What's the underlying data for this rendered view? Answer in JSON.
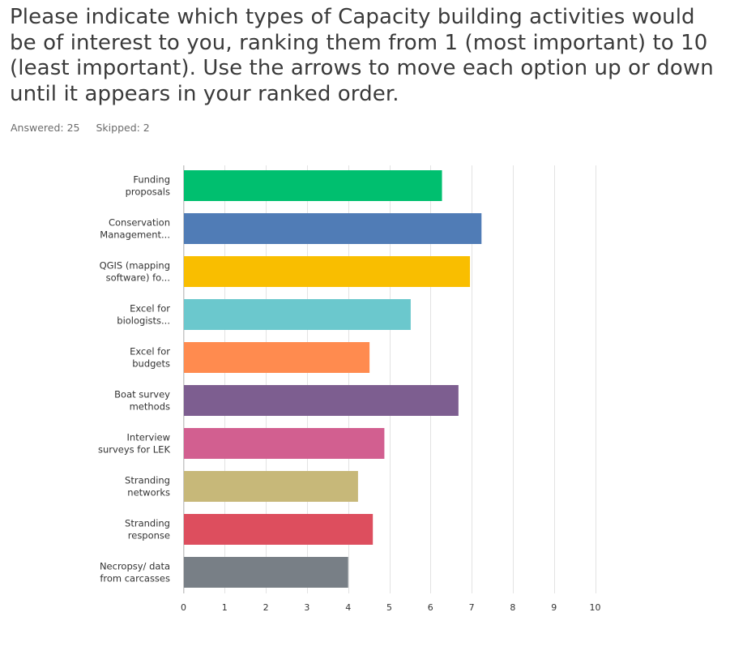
{
  "question": {
    "text": "Please indicate which types of Capacity building activities would be of interest to you, ranking them from 1 (most important) to 10 (least important). Use the arrows to move each option up or down until it appears in your ranked order."
  },
  "stats": {
    "answered_label": "Answered: 25",
    "skipped_label": "Skipped: 2"
  },
  "chart_data": {
    "type": "bar",
    "orientation": "horizontal",
    "title": "",
    "xlabel": "",
    "ylabel": "",
    "xlim": [
      0,
      10
    ],
    "x_ticks": [
      "0",
      "1",
      "2",
      "3",
      "4",
      "5",
      "6",
      "7",
      "8",
      "9",
      "10"
    ],
    "grid": true,
    "categories": [
      [
        "Funding",
        "proposals"
      ],
      [
        "Conservation",
        "Management..."
      ],
      [
        "QGIS (mapping",
        "software) fo..."
      ],
      [
        "Excel for",
        "biologists..."
      ],
      [
        "Excel for",
        "budgets"
      ],
      [
        "Boat survey",
        "methods"
      ],
      [
        "Interview",
        "surveys for LEK"
      ],
      [
        "Stranding",
        "networks"
      ],
      [
        "Stranding",
        "response"
      ],
      [
        "Necropsy/ data",
        "from carcasses"
      ]
    ],
    "values": [
      6.28,
      7.24,
      6.96,
      5.52,
      4.52,
      6.68,
      4.88,
      4.24,
      4.6,
      4.0
    ],
    "colors": [
      "#00bf6f",
      "#507cb6",
      "#f9be00",
      "#6bc8cd",
      "#ff8b4f",
      "#7d5e90",
      "#d25f90",
      "#c7b879",
      "#dd4e5e",
      "#787f86"
    ]
  }
}
